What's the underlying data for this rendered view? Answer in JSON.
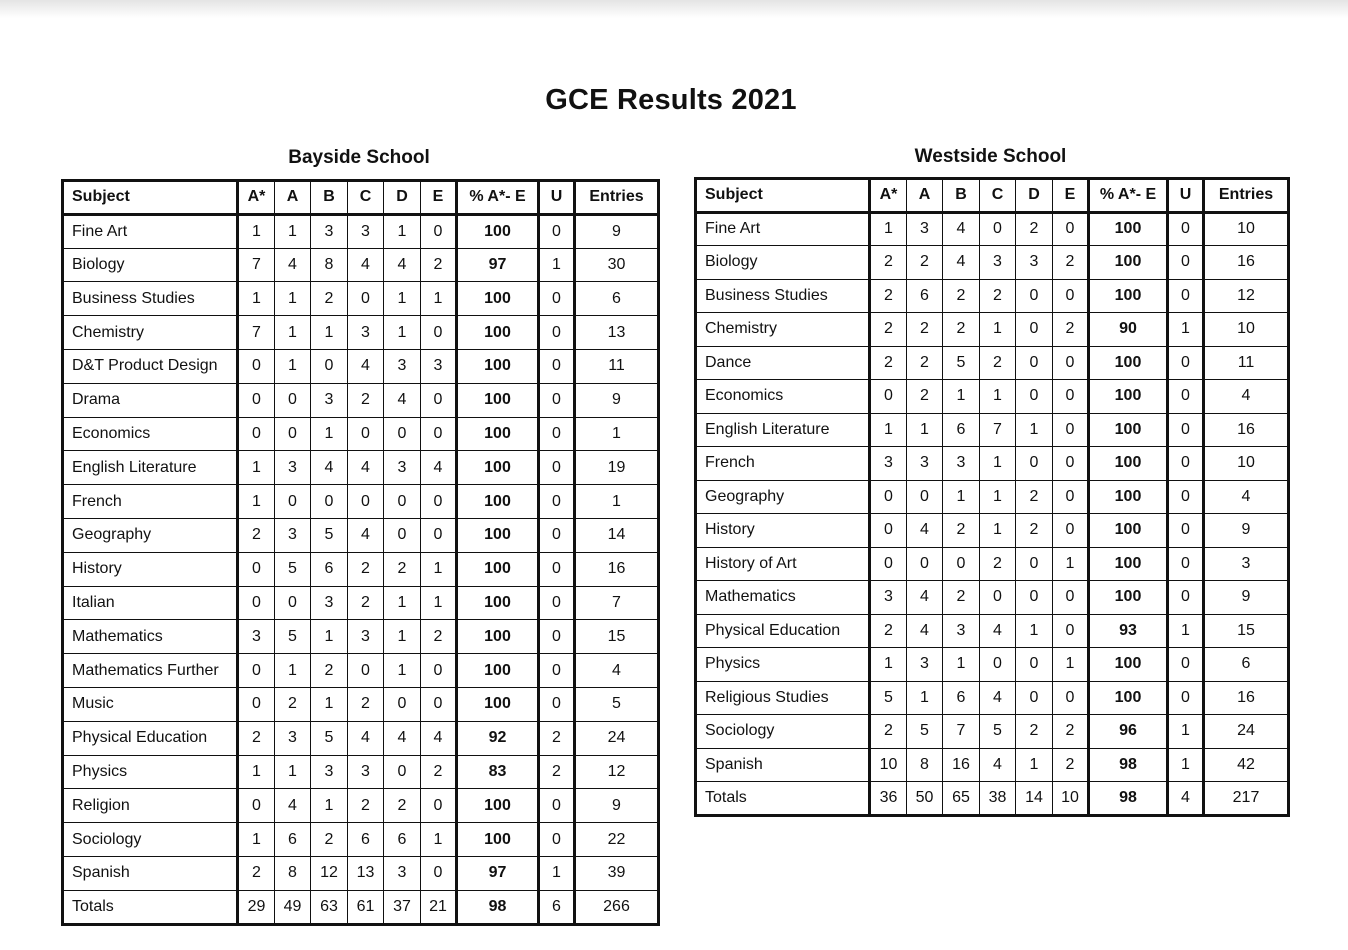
{
  "title": "GCE Results 2021",
  "headers": {
    "subject": "Subject",
    "grades": [
      "A*",
      "A",
      "B",
      "C",
      "D",
      "E"
    ],
    "pct": "% A*- E",
    "u": "U",
    "entries": "Entries"
  },
  "bayside": {
    "name": "Bayside School",
    "rows": [
      {
        "subject": "Fine Art",
        "grades": [
          "1",
          "1",
          "3",
          "3",
          "1",
          "0"
        ],
        "pct": "100",
        "u": "0",
        "entries": "9"
      },
      {
        "subject": "Biology",
        "grades": [
          "7",
          "4",
          "8",
          "4",
          "4",
          "2"
        ],
        "pct": "97",
        "u": "1",
        "entries": "30"
      },
      {
        "subject": "Business Studies",
        "grades": [
          "1",
          "1",
          "2",
          "0",
          "1",
          "1"
        ],
        "pct": "100",
        "u": "0",
        "entries": "6"
      },
      {
        "subject": "Chemistry",
        "grades": [
          "7",
          "1",
          "1",
          "3",
          "1",
          "0"
        ],
        "pct": "100",
        "u": "0",
        "entries": "13"
      },
      {
        "subject": "D&T Product Design",
        "grades": [
          "0",
          "1",
          "0",
          "4",
          "3",
          "3"
        ],
        "pct": "100",
        "u": "0",
        "entries": "11"
      },
      {
        "subject": "Drama",
        "grades": [
          "0",
          "0",
          "3",
          "2",
          "4",
          "0"
        ],
        "pct": "100",
        "u": "0",
        "entries": "9"
      },
      {
        "subject": "Economics",
        "grades": [
          "0",
          "0",
          "1",
          "0",
          "0",
          "0"
        ],
        "pct": "100",
        "u": "0",
        "entries": "1"
      },
      {
        "subject": "English Literature",
        "grades": [
          "1",
          "3",
          "4",
          "4",
          "3",
          "4"
        ],
        "pct": "100",
        "u": "0",
        "entries": "19"
      },
      {
        "subject": "French",
        "grades": [
          "1",
          "0",
          "0",
          "0",
          "0",
          "0"
        ],
        "pct": "100",
        "u": "0",
        "entries": "1"
      },
      {
        "subject": "Geography",
        "grades": [
          "2",
          "3",
          "5",
          "4",
          "0",
          "0"
        ],
        "pct": "100",
        "u": "0",
        "entries": "14"
      },
      {
        "subject": "History",
        "grades": [
          "0",
          "5",
          "6",
          "2",
          "2",
          "1"
        ],
        "pct": "100",
        "u": "0",
        "entries": "16"
      },
      {
        "subject": "Italian",
        "grades": [
          "0",
          "0",
          "3",
          "2",
          "1",
          "1"
        ],
        "pct": "100",
        "u": "0",
        "entries": "7"
      },
      {
        "subject": "Mathematics",
        "grades": [
          "3",
          "5",
          "1",
          "3",
          "1",
          "2"
        ],
        "pct": "100",
        "u": "0",
        "entries": "15"
      },
      {
        "subject": "Mathematics Further",
        "grades": [
          "0",
          "1",
          "2",
          "0",
          "1",
          "0"
        ],
        "pct": "100",
        "u": "0",
        "entries": "4"
      },
      {
        "subject": "Music",
        "grades": [
          "0",
          "2",
          "1",
          "2",
          "0",
          "0"
        ],
        "pct": "100",
        "u": "0",
        "entries": "5"
      },
      {
        "subject": "Physical Education",
        "grades": [
          "2",
          "3",
          "5",
          "4",
          "4",
          "4"
        ],
        "pct": "92",
        "u": "2",
        "entries": "24"
      },
      {
        "subject": "Physics",
        "grades": [
          "1",
          "1",
          "3",
          "3",
          "0",
          "2"
        ],
        "pct": "83",
        "u": "2",
        "entries": "12"
      },
      {
        "subject": "Religion",
        "grades": [
          "0",
          "4",
          "1",
          "2",
          "2",
          "0"
        ],
        "pct": "100",
        "u": "0",
        "entries": "9"
      },
      {
        "subject": "Sociology",
        "grades": [
          "1",
          "6",
          "2",
          "6",
          "6",
          "1"
        ],
        "pct": "100",
        "u": "0",
        "entries": "22"
      },
      {
        "subject": "Spanish",
        "grades": [
          "2",
          "8",
          "12",
          "13",
          "3",
          "0"
        ],
        "pct": "97",
        "u": "1",
        "entries": "39"
      },
      {
        "subject": "Totals",
        "grades": [
          "29",
          "49",
          "63",
          "61",
          "37",
          "21"
        ],
        "pct": "98",
        "u": "6",
        "entries": "266"
      }
    ]
  },
  "westside": {
    "name": "Westside School",
    "rows": [
      {
        "subject": "Fine Art",
        "grades": [
          "1",
          "3",
          "4",
          "0",
          "2",
          "0"
        ],
        "pct": "100",
        "u": "0",
        "entries": "10"
      },
      {
        "subject": "Biology",
        "grades": [
          "2",
          "2",
          "4",
          "3",
          "3",
          "2"
        ],
        "pct": "100",
        "u": "0",
        "entries": "16"
      },
      {
        "subject": "Business Studies",
        "grades": [
          "2",
          "6",
          "2",
          "2",
          "0",
          "0"
        ],
        "pct": "100",
        "u": "0",
        "entries": "12"
      },
      {
        "subject": "Chemistry",
        "grades": [
          "2",
          "2",
          "2",
          "1",
          "0",
          "2"
        ],
        "pct": "90",
        "u": "1",
        "entries": "10"
      },
      {
        "subject": "Dance",
        "grades": [
          "2",
          "2",
          "5",
          "2",
          "0",
          "0"
        ],
        "pct": "100",
        "u": "0",
        "entries": "11"
      },
      {
        "subject": "Economics",
        "grades": [
          "0",
          "2",
          "1",
          "1",
          "0",
          "0"
        ],
        "pct": "100",
        "u": "0",
        "entries": "4"
      },
      {
        "subject": "English Literature",
        "grades": [
          "1",
          "1",
          "6",
          "7",
          "1",
          "0"
        ],
        "pct": "100",
        "u": "0",
        "entries": "16"
      },
      {
        "subject": "French",
        "grades": [
          "3",
          "3",
          "3",
          "1",
          "0",
          "0"
        ],
        "pct": "100",
        "u": "0",
        "entries": "10"
      },
      {
        "subject": "Geography",
        "grades": [
          "0",
          "0",
          "1",
          "1",
          "2",
          "0"
        ],
        "pct": "100",
        "u": "0",
        "entries": "4"
      },
      {
        "subject": "History",
        "grades": [
          "0",
          "4",
          "2",
          "1",
          "2",
          "0"
        ],
        "pct": "100",
        "u": "0",
        "entries": "9"
      },
      {
        "subject": "History of Art",
        "grades": [
          "0",
          "0",
          "0",
          "2",
          "0",
          "1"
        ],
        "pct": "100",
        "u": "0",
        "entries": "3"
      },
      {
        "subject": "Mathematics",
        "grades": [
          "3",
          "4",
          "2",
          "0",
          "0",
          "0"
        ],
        "pct": "100",
        "u": "0",
        "entries": "9"
      },
      {
        "subject": "Physical Education",
        "grades": [
          "2",
          "4",
          "3",
          "4",
          "1",
          "0"
        ],
        "pct": "93",
        "u": "1",
        "entries": "15"
      },
      {
        "subject": "Physics",
        "grades": [
          "1",
          "3",
          "1",
          "0",
          "0",
          "1"
        ],
        "pct": "100",
        "u": "0",
        "entries": "6"
      },
      {
        "subject": "Religious Studies",
        "grades": [
          "5",
          "1",
          "6",
          "4",
          "0",
          "0"
        ],
        "pct": "100",
        "u": "0",
        "entries": "16"
      },
      {
        "subject": "Sociology",
        "grades": [
          "2",
          "5",
          "7",
          "5",
          "2",
          "2"
        ],
        "pct": "96",
        "u": "1",
        "entries": "24"
      },
      {
        "subject": "Spanish",
        "grades": [
          "10",
          "8",
          "16",
          "4",
          "1",
          "2"
        ],
        "pct": "98",
        "u": "1",
        "entries": "42"
      },
      {
        "subject": "Totals",
        "grades": [
          "36",
          "50",
          "65",
          "38",
          "14",
          "10"
        ],
        "pct": "98",
        "u": "4",
        "entries": "217"
      }
    ]
  }
}
